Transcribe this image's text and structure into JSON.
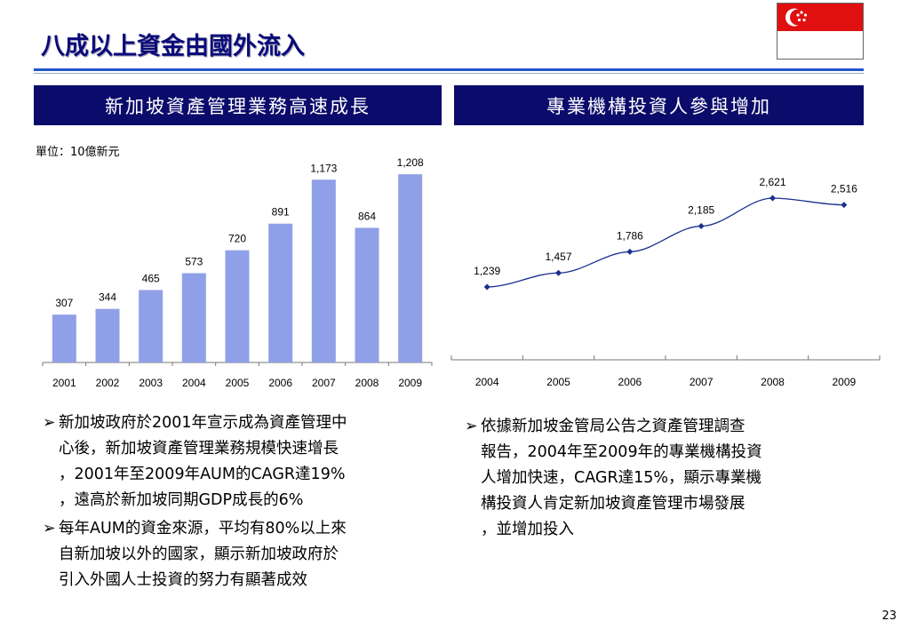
{
  "title": "八成以上資金由國外流入",
  "left_panel": {
    "header": "新加坡資產管理業務高速成長",
    "unit": "單位：10億新元"
  },
  "right_panel": {
    "header": "專業機構投資人參與增加"
  },
  "colors": {
    "bar": "#8fa0e8",
    "band": "#0b0b6b",
    "line": "#1a2f8f",
    "title": "#0a0a7a"
  },
  "chart_data": [
    {
      "type": "bar",
      "categories": [
        "2001",
        "2002",
        "2003",
        "2004",
        "2005",
        "2006",
        "2007",
        "2008",
        "2009"
      ],
      "values": [
        307,
        344,
        465,
        573,
        720,
        891,
        1173,
        864,
        1208
      ],
      "value_labels": [
        "307",
        "344",
        "465",
        "573",
        "720",
        "891",
        "1,173",
        "864",
        "1,208"
      ],
      "ylim": [
        0,
        1300
      ]
    },
    {
      "type": "line",
      "categories": [
        "2004",
        "2005",
        "2006",
        "2007",
        "2008",
        "2009"
      ],
      "values": [
        1239,
        1457,
        1786,
        2185,
        2621,
        2516
      ],
      "value_labels": [
        "1,239",
        "1,457",
        "1,786",
        "2,185",
        "2,621",
        "2,516"
      ],
      "ylim": [
        0,
        3200
      ]
    }
  ],
  "bullets_left": [
    [
      "新加坡政府於2001年宣示成為資產管理中",
      "心後，新加坡資產管理業務規模快速增長",
      "，2001年至2009年AUM的CAGR達19%",
      "，遠高於新加坡同期GDP成長的6%"
    ],
    [
      "每年AUM的資金來源，平均有80%以上來",
      "自新加坡以外的國家，顯示新加坡政府於",
      "引入外國人士投資的努力有顯著成效"
    ]
  ],
  "bullets_right": [
    [
      "依據新加坡金管局公告之資產管理調查",
      "報告，2004年至2009年的專業機構投資",
      "人增加快速，CAGR達15%，顯示專業機",
      "構投資人肯定新加坡資產管理市場發展",
      "，並增加投入"
    ]
  ],
  "bullet_marker": "➢",
  "page_number": "23"
}
